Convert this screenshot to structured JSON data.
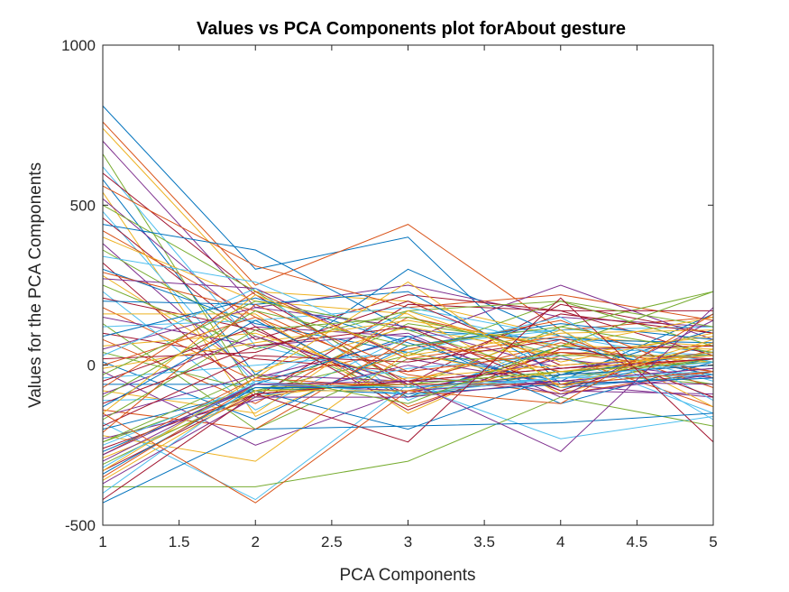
{
  "chart_data": {
    "type": "line",
    "title": "Values vs PCA Components plot forAbout gesture",
    "xlabel": "PCA Components",
    "ylabel": "Values for the PCA Components",
    "xlim": [
      1,
      5
    ],
    "ylim": [
      -500,
      1000
    ],
    "x": [
      1,
      2,
      3,
      4,
      5
    ],
    "x_tick_labels": [
      "1",
      "1.5",
      "2",
      "2.5",
      "3",
      "3.5",
      "4",
      "4.5",
      "5"
    ],
    "y_tick_labels": [
      "-500",
      "0",
      "500",
      "1000"
    ],
    "grid": false,
    "legend": "none",
    "color_order": [
      "#0072BD",
      "#D95319",
      "#EDB120",
      "#7E2F8E",
      "#77AC30",
      "#4DBEEE",
      "#A2142F"
    ],
    "series": [
      {
        "values": [
          810,
          300,
          400,
          -60,
          20
        ]
      },
      {
        "values": [
          760,
          250,
          440,
          110,
          150
        ]
      },
      {
        "values": [
          740,
          230,
          200,
          90,
          60
        ]
      },
      {
        "values": [
          700,
          180,
          250,
          150,
          120
        ]
      },
      {
        "values": [
          660,
          -90,
          130,
          60,
          -30
        ]
      },
      {
        "values": [
          620,
          60,
          -40,
          -60,
          -40
        ]
      },
      {
        "values": [
          600,
          220,
          -60,
          190,
          100
        ]
      },
      {
        "values": [
          580,
          -30,
          300,
          90,
          40
        ]
      },
      {
        "values": [
          560,
          310,
          180,
          220,
          140
        ]
      },
      {
        "values": [
          540,
          -160,
          50,
          40,
          10
        ]
      },
      {
        "values": [
          520,
          120,
          90,
          -80,
          -90
        ]
      },
      {
        "values": [
          500,
          230,
          -70,
          120,
          230
        ]
      },
      {
        "values": [
          480,
          -60,
          170,
          60,
          30
        ]
      },
      {
        "values": [
          460,
          80,
          220,
          170,
          170
        ]
      },
      {
        "values": [
          440,
          360,
          110,
          80,
          70
        ]
      },
      {
        "values": [
          420,
          150,
          -130,
          30,
          -130
        ]
      },
      {
        "values": [
          400,
          200,
          160,
          -90,
          50
        ]
      },
      {
        "values": [
          380,
          -40,
          80,
          250,
          80
        ]
      },
      {
        "values": [
          360,
          90,
          -100,
          -20,
          -60
        ]
      },
      {
        "values": [
          340,
          260,
          60,
          110,
          120
        ]
      },
      {
        "values": [
          320,
          -100,
          190,
          170,
          30
        ]
      },
      {
        "values": [
          300,
          130,
          40,
          -50,
          160
        ]
      },
      {
        "values": [
          290,
          170,
          -50,
          70,
          -20
        ]
      },
      {
        "values": [
          280,
          -20,
          120,
          30,
          90
        ]
      },
      {
        "values": [
          270,
          240,
          20,
          -60,
          -100
        ]
      },
      {
        "values": [
          250,
          50,
          170,
          200,
          60
        ]
      },
      {
        "values": [
          230,
          -140,
          90,
          110,
          -170
        ]
      },
      {
        "values": [
          210,
          110,
          -90,
          40,
          20
        ]
      },
      {
        "values": [
          200,
          190,
          230,
          -30,
          110
        ]
      },
      {
        "values": [
          180,
          -50,
          50,
          140,
          -40
        ]
      },
      {
        "values": [
          160,
          160,
          -150,
          60,
          50
        ]
      },
      {
        "values": [
          150,
          60,
          100,
          -100,
          140
        ]
      },
      {
        "values": [
          130,
          -200,
          20,
          20,
          -60
        ]
      },
      {
        "values": [
          120,
          140,
          180,
          90,
          10
        ]
      },
      {
        "values": [
          100,
          20,
          -20,
          160,
          100
        ]
      },
      {
        "values": [
          90,
          210,
          70,
          -70,
          -30
        ]
      },
      {
        "values": [
          80,
          -120,
          150,
          50,
          60
        ]
      },
      {
        "values": [
          60,
          100,
          -60,
          110,
          -130
        ]
      },
      {
        "values": [
          50,
          180,
          120,
          -10,
          40
        ]
      },
      {
        "values": [
          40,
          -80,
          30,
          200,
          120
        ]
      },
      {
        "values": [
          30,
          240,
          -110,
          80,
          -50
        ]
      },
      {
        "values": [
          20,
          40,
          200,
          0,
          30
        ]
      },
      {
        "values": [
          10,
          -170,
          60,
          130,
          80
        ]
      },
      {
        "values": [
          0,
          150,
          -30,
          -90,
          -20
        ]
      },
      {
        "values": [
          -10,
          70,
          140,
          60,
          150
        ]
      },
      {
        "values": [
          -20,
          -250,
          -80,
          20,
          -40
        ]
      },
      {
        "values": [
          -30,
          200,
          110,
          -40,
          20
        ]
      },
      {
        "values": [
          -40,
          0,
          40,
          150,
          -110
        ]
      },
      {
        "values": [
          -50,
          120,
          -140,
          50,
          60
        ]
      },
      {
        "values": [
          -60,
          -60,
          90,
          -120,
          10
        ]
      },
      {
        "values": [
          -70,
          230,
          20,
          90,
          -70
        ]
      },
      {
        "values": [
          -80,
          -150,
          170,
          10,
          100
        ]
      },
      {
        "values": [
          -90,
          90,
          -60,
          -60,
          -20
        ]
      },
      {
        "values": [
          -100,
          170,
          60,
          120,
          40
        ]
      },
      {
        "values": [
          -110,
          -100,
          -10,
          30,
          -150
        ]
      },
      {
        "values": [
          -120,
          60,
          120,
          -80,
          70
        ]
      },
      {
        "values": [
          -130,
          140,
          -100,
          60,
          -30
        ]
      },
      {
        "values": [
          -140,
          -200,
          80,
          -20,
          20
        ]
      },
      {
        "values": [
          -150,
          220,
          30,
          100,
          110
        ]
      },
      {
        "values": [
          -160,
          -30,
          -50,
          -50,
          -60
        ]
      },
      {
        "values": [
          -170,
          110,
          150,
          30,
          30
        ]
      },
      {
        "values": [
          -180,
          -420,
          -60,
          -230,
          -160
        ]
      },
      {
        "values": [
          -190,
          30,
          10,
          80,
          -100
        ]
      },
      {
        "values": [
          -200,
          -80,
          -200,
          -30,
          40
        ]
      },
      {
        "values": [
          -210,
          190,
          -20,
          40,
          -20
        ]
      },
      {
        "values": [
          -220,
          -300,
          40,
          -60,
          80
        ]
      },
      {
        "values": [
          -230,
          -110,
          0,
          -90,
          -30
        ]
      },
      {
        "values": [
          -240,
          -70,
          -60,
          -20,
          10
        ]
      },
      {
        "values": [
          -250,
          -60,
          -80,
          -40,
          -20
        ]
      },
      {
        "values": [
          -260,
          -90,
          -50,
          -10,
          20
        ]
      },
      {
        "values": [
          -270,
          -70,
          -90,
          -60,
          -40
        ]
      },
      {
        "values": [
          -280,
          -40,
          -70,
          -30,
          0
        ]
      },
      {
        "values": [
          -290,
          -100,
          -40,
          0,
          30
        ]
      },
      {
        "values": [
          -300,
          -60,
          -80,
          -50,
          -10
        ]
      },
      {
        "values": [
          -310,
          -80,
          -60,
          -20,
          10
        ]
      },
      {
        "values": [
          -320,
          -50,
          -90,
          -40,
          -30
        ]
      },
      {
        "values": [
          -330,
          -90,
          -50,
          -10,
          20
        ]
      },
      {
        "values": [
          -340,
          -70,
          -70,
          -30,
          0
        ]
      },
      {
        "values": [
          -350,
          -60,
          -60,
          -60,
          -20
        ]
      },
      {
        "values": [
          -360,
          -80,
          -80,
          -20,
          40
        ]
      },
      {
        "values": [
          -370,
          -100,
          -100,
          -50,
          -10
        ]
      },
      {
        "values": [
          -380,
          -380,
          -300,
          -100,
          -190
        ]
      },
      {
        "values": [
          -400,
          -60,
          -70,
          -40,
          10
        ]
      },
      {
        "values": [
          -420,
          -90,
          -240,
          210,
          -240
        ]
      },
      {
        "values": [
          -430,
          -200,
          -190,
          -180,
          -150
        ]
      },
      {
        "values": [
          -150,
          -430,
          -80,
          -120,
          160
        ]
      },
      {
        "values": [
          -330,
          -40,
          260,
          -70,
          70
        ]
      },
      {
        "values": [
          -280,
          -60,
          -50,
          -270,
          180
        ]
      },
      {
        "values": [
          -240,
          -30,
          -120,
          60,
          230
        ]
      }
    ]
  }
}
